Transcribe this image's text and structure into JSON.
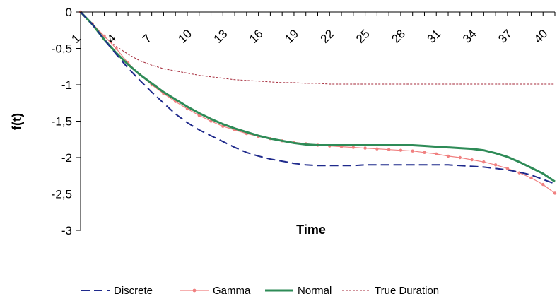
{
  "chart_data": {
    "type": "line",
    "xlabel": "Time",
    "ylabel": "f(t)",
    "ylim": [
      -3,
      0
    ],
    "xlim": [
      1,
      41
    ],
    "yticks": [
      0,
      -0.5,
      -1,
      -1.5,
      -2,
      -2.5,
      -3
    ],
    "ytick_labels": [
      "0",
      "-0,5",
      "-1",
      "-1,5",
      "-2",
      "-2,5",
      "-3"
    ],
    "xticks": [
      1,
      4,
      7,
      10,
      13,
      16,
      19,
      22,
      25,
      28,
      31,
      34,
      37,
      40
    ],
    "xtick_labels": [
      "1",
      "4",
      "7",
      "10",
      "13",
      "16",
      "19",
      "22",
      "25",
      "28",
      "31",
      "34",
      "37",
      "40"
    ],
    "x_axis_position": "top",
    "grid": false,
    "legend": "bottom",
    "x": [
      1,
      2,
      3,
      4,
      5,
      6,
      7,
      8,
      9,
      10,
      11,
      12,
      13,
      14,
      15,
      16,
      17,
      18,
      19,
      20,
      21,
      22,
      23,
      24,
      25,
      26,
      27,
      28,
      29,
      30,
      31,
      32,
      33,
      34,
      35,
      36,
      37,
      38,
      39,
      40,
      41
    ],
    "series": [
      {
        "name": "Discrete",
        "color": "#1f2a8c",
        "style": "dashed",
        "values": [
          0,
          -0.17,
          -0.38,
          -0.58,
          -0.77,
          -0.94,
          -1.1,
          -1.25,
          -1.4,
          -1.52,
          -1.62,
          -1.7,
          -1.78,
          -1.86,
          -1.93,
          -1.98,
          -2.02,
          -2.05,
          -2.08,
          -2.1,
          -2.11,
          -2.11,
          -2.11,
          -2.11,
          -2.1,
          -2.1,
          -2.1,
          -2.1,
          -2.1,
          -2.1,
          -2.1,
          -2.1,
          -2.11,
          -2.12,
          -2.13,
          -2.15,
          -2.17,
          -2.2,
          -2.24,
          -2.3,
          -2.36
        ]
      },
      {
        "name": "Gamma",
        "color": "#f08080",
        "style": "solid-markers",
        "values": [
          0,
          -0.16,
          -0.33,
          -0.5,
          -0.7,
          -0.86,
          -1.0,
          -1.12,
          -1.23,
          -1.33,
          -1.42,
          -1.5,
          -1.57,
          -1.62,
          -1.67,
          -1.71,
          -1.74,
          -1.77,
          -1.79,
          -1.81,
          -1.83,
          -1.84,
          -1.85,
          -1.86,
          -1.87,
          -1.88,
          -1.89,
          -1.9,
          -1.91,
          -1.93,
          -1.95,
          -1.98,
          -2.0,
          -2.03,
          -2.06,
          -2.1,
          -2.15,
          -2.21,
          -2.28,
          -2.37,
          -2.49
        ]
      },
      {
        "name": "Normal",
        "color": "#2e8b57",
        "style": "solid",
        "values": [
          0,
          -0.17,
          -0.38,
          -0.56,
          -0.72,
          -0.86,
          -0.98,
          -1.1,
          -1.2,
          -1.3,
          -1.39,
          -1.47,
          -1.54,
          -1.6,
          -1.65,
          -1.7,
          -1.74,
          -1.77,
          -1.8,
          -1.82,
          -1.83,
          -1.83,
          -1.83,
          -1.83,
          -1.83,
          -1.83,
          -1.83,
          -1.83,
          -1.83,
          -1.84,
          -1.85,
          -1.86,
          -1.87,
          -1.88,
          -1.9,
          -1.94,
          -1.99,
          -2.06,
          -2.14,
          -2.22,
          -2.33
        ]
      },
      {
        "name": "True Duration",
        "color": "#a52a3a",
        "style": "dotted",
        "values": [
          0,
          -0.18,
          -0.34,
          -0.47,
          -0.58,
          -0.67,
          -0.73,
          -0.78,
          -0.81,
          -0.84,
          -0.87,
          -0.89,
          -0.91,
          -0.93,
          -0.94,
          -0.95,
          -0.96,
          -0.97,
          -0.97,
          -0.98,
          -0.98,
          -0.99,
          -0.99,
          -0.99,
          -0.99,
          -0.99,
          -0.99,
          -0.99,
          -0.99,
          -0.99,
          -0.99,
          -0.99,
          -0.99,
          -0.99,
          -0.99,
          -0.99,
          -0.99,
          -0.99,
          -0.99,
          -0.99,
          -0.99
        ]
      }
    ]
  }
}
